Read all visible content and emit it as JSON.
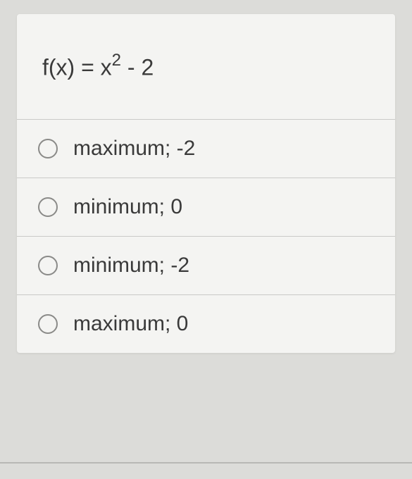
{
  "question": {
    "stem": {
      "prefix": "f(x) = x",
      "exponent": "2",
      "suffix": " - 2"
    },
    "stem_fontsize": 32,
    "stem_color": "#3a3a3a"
  },
  "options": [
    {
      "label": "maximum; -2",
      "selected": false
    },
    {
      "label": "minimum; 0",
      "selected": false
    },
    {
      "label": "minimum; -2",
      "selected": false
    },
    {
      "label": "maximum; 0",
      "selected": false
    }
  ],
  "styling": {
    "page_background": "#dcdcd9",
    "card_background": "#f4f4f2",
    "divider_color": "#c9c9c7",
    "radio_border_color": "#8a8a88",
    "option_fontsize": 30,
    "option_text_color": "#3a3a3a",
    "radio_size": 28,
    "bottom_rule_color": "#b8b8b5"
  }
}
